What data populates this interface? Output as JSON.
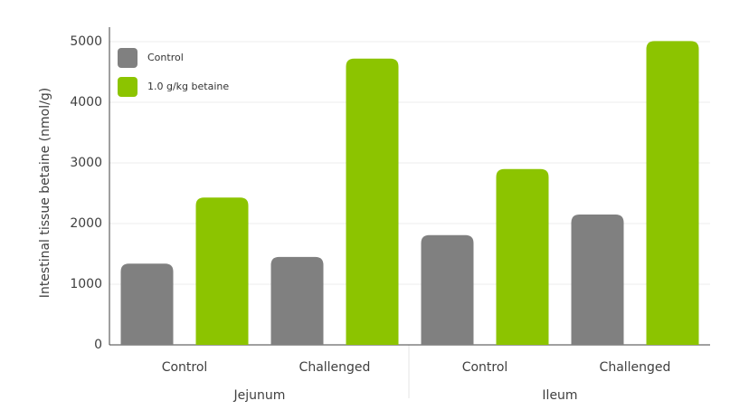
{
  "chart_data": {
    "type": "bar",
    "y_label": "Intestinal tissue betaine (nmol/g)",
    "categories": [
      "Control",
      "Challenged",
      "Control",
      "Challenged"
    ],
    "groups": [
      "Jejunum",
      "Ileum"
    ],
    "series": [
      {
        "name": "Control",
        "color": "#808080",
        "values": [
          1340,
          1450,
          1810,
          2150
        ]
      },
      {
        "name": "1.0 g/kg betaine",
        "color": "#8cc400",
        "values": [
          2430,
          4720,
          2900,
          5010
        ]
      }
    ],
    "ylim": [
      0,
      5000
    ],
    "yticks": [
      0,
      1000,
      2000,
      3000,
      4000,
      5000
    ],
    "grid": true,
    "legend": "top-left"
  }
}
